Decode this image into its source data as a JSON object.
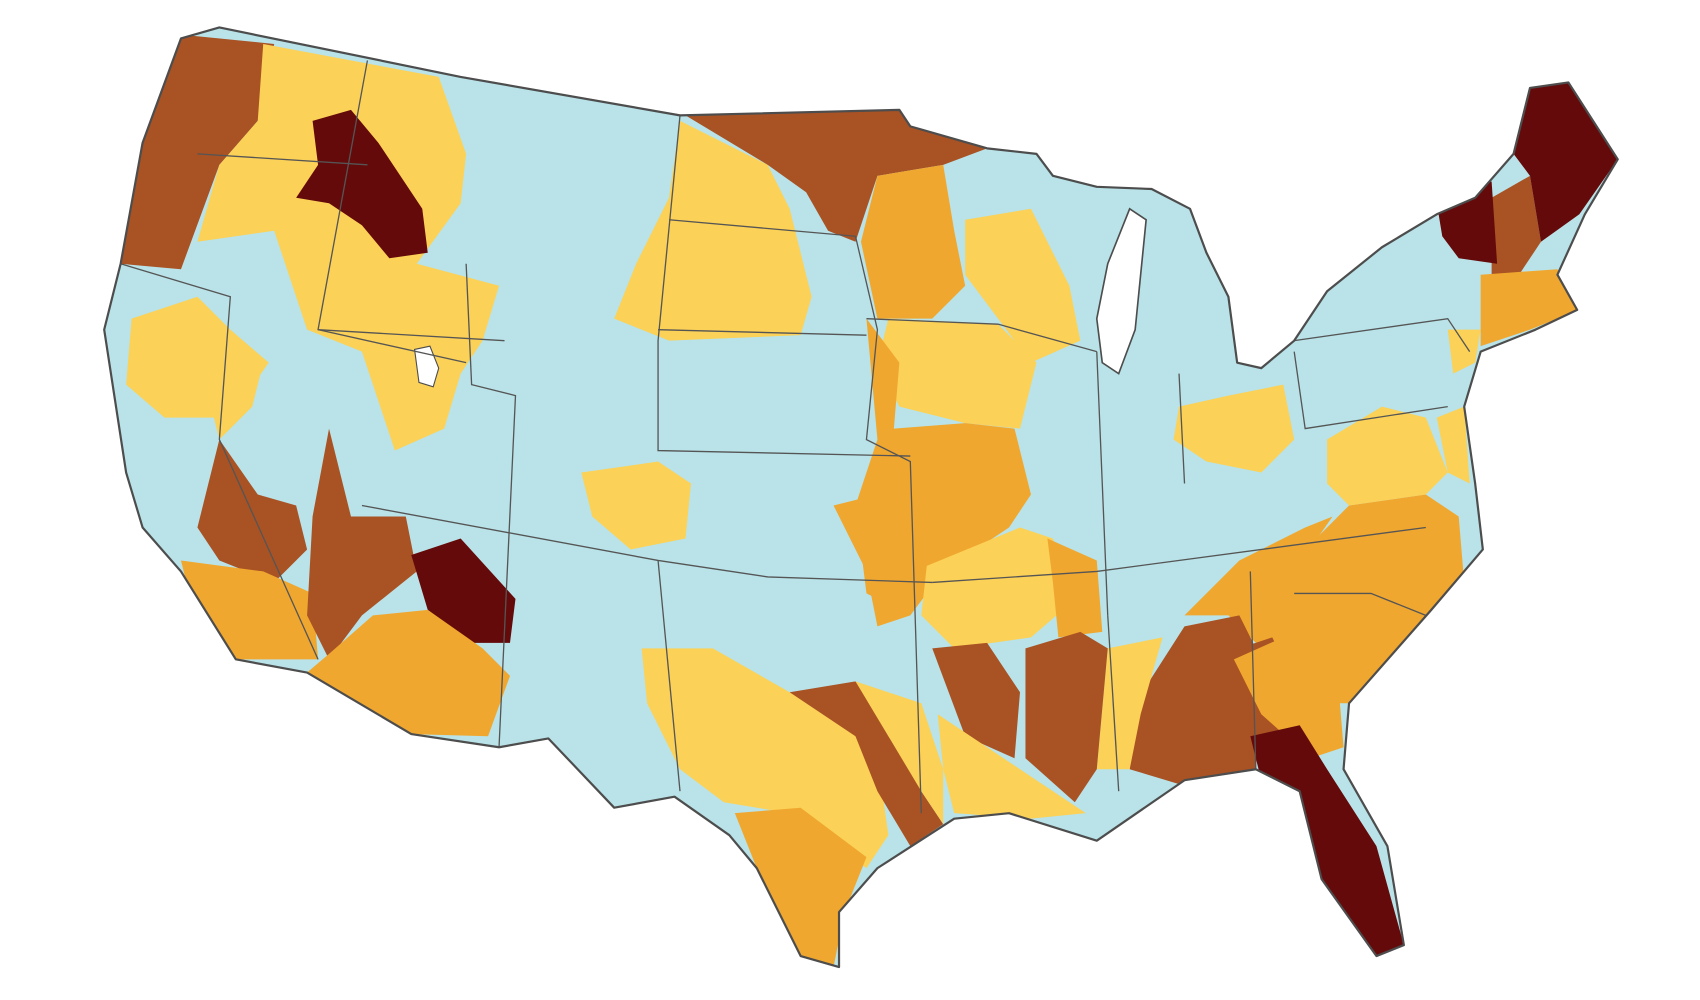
{
  "map": {
    "colors": {
      "base": "#b9e3e8",
      "level1": "#fbd157",
      "level2": "#f0a72f",
      "level3": "#a95224",
      "level4": "#640a0a",
      "outline": "#4d4d4d",
      "water": "#ffffff"
    }
  }
}
